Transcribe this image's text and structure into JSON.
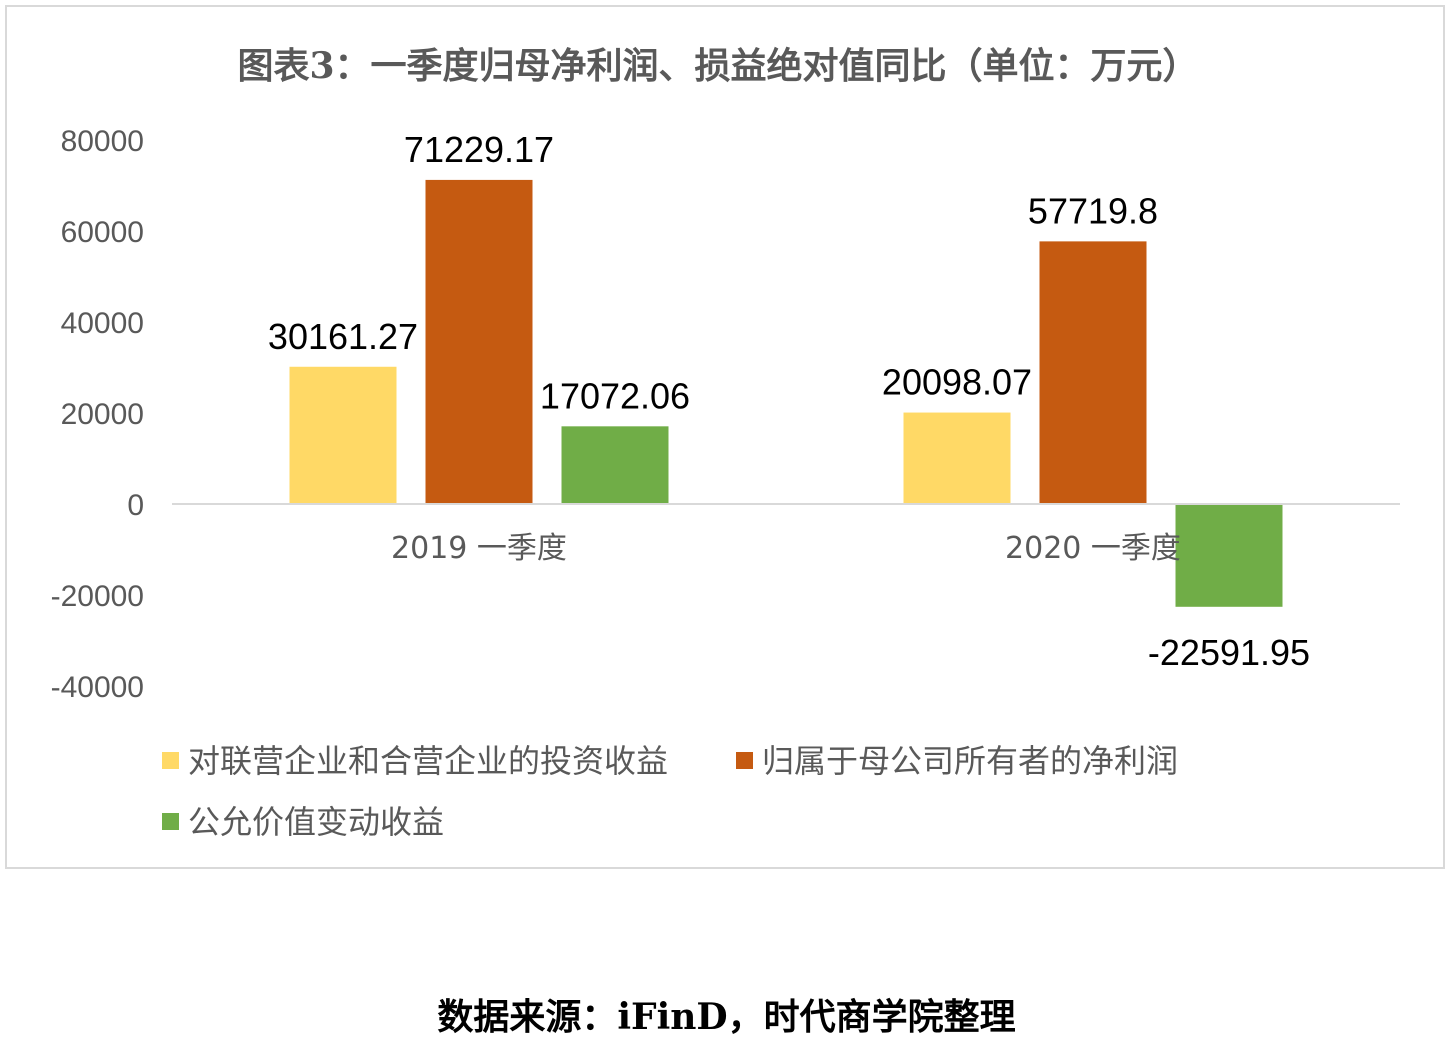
{
  "chart_data": {
    "type": "bar",
    "title": "图表3：一季度归母净利润、损益绝对值同比（单位：万元）",
    "categories": [
      "2019 一季度",
      "2020 一季度"
    ],
    "series": [
      {
        "name": "对联营企业和合营企业的投资收益",
        "values": [
          30161.27,
          20098.07
        ],
        "labels": [
          "30161.27",
          "20098.07"
        ],
        "color": "#ffd966"
      },
      {
        "name": "归属于母公司所有者的净利润",
        "values": [
          71229.17,
          57719.8
        ],
        "labels": [
          "71229.17",
          "57719.8"
        ],
        "color": "#c55a11"
      },
      {
        "name": "公允价值变动收益",
        "values": [
          17072.06,
          -22591.95
        ],
        "labels": [
          "17072.06",
          "-22591.95"
        ],
        "color": "#70ad47"
      }
    ],
    "yticks": [
      "80000",
      "60000",
      "40000",
      "20000",
      "0",
      "-20000",
      "-40000"
    ],
    "ytick_values": [
      80000,
      60000,
      40000,
      20000,
      0,
      -20000,
      -40000
    ],
    "ylim": [
      -40000,
      80000
    ],
    "grid": false,
    "legend_position": "bottom-left"
  },
  "source_note": "数据来源：iFinD，时代商学院整理"
}
